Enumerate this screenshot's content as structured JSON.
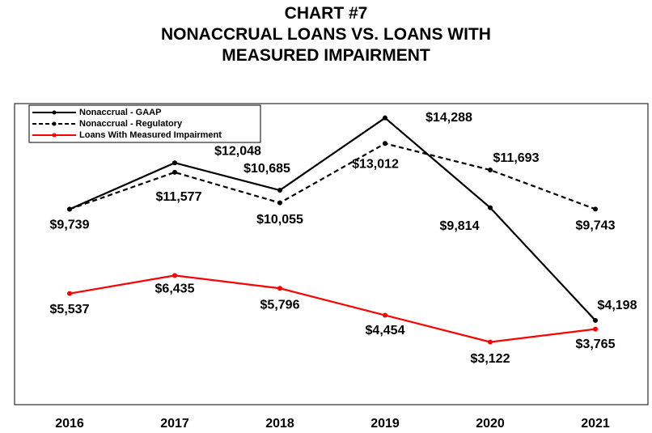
{
  "chart_data": {
    "type": "line",
    "title": "CHART #7",
    "subtitle": "NONACCRUAL LOANS VS. LOANS WITH MEASURED IMPAIRMENT",
    "categories": [
      "2016",
      "2017",
      "2018",
      "2019",
      "2020",
      "2021"
    ],
    "series": [
      {
        "name": "Nonaccrual - GAAP",
        "color": "#000000",
        "dash": false,
        "values": [
          9739,
          12048,
          10685,
          14288,
          9814,
          4198
        ],
        "value_labels": [
          "$9,739",
          "$12,048",
          "$10,685",
          "$14,288",
          "$9,814",
          "$4,198"
        ]
      },
      {
        "name": "Nonaccrual - Regulatory",
        "color": "#000000",
        "dash": true,
        "values": [
          9739,
          11577,
          10055,
          13012,
          11693,
          9743
        ],
        "value_labels": [
          null,
          "$11,577",
          "$10,055",
          "$13,012",
          "$11,693",
          "$9,743"
        ]
      },
      {
        "name": "Loans With Measured Impairment",
        "color": "#ff0000",
        "dash": false,
        "values": [
          5537,
          6435,
          5796,
          4454,
          3122,
          3765
        ],
        "value_labels": [
          "$5,537",
          "$6,435",
          "$5,796",
          "$4,454",
          "$3,122",
          "$3,765"
        ]
      }
    ],
    "ylim": [
      0,
      15000
    ],
    "legend": "top-left"
  }
}
